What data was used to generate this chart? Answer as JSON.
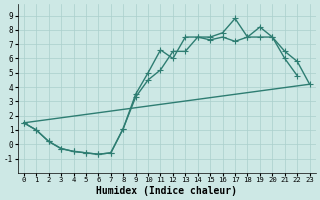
{
  "xlabel": "Humidex (Indice chaleur)",
  "bg_color": "#cde8e5",
  "grid_color": "#aacfcc",
  "line_color": "#2e7d72",
  "xlim": [
    -0.5,
    23.5
  ],
  "ylim": [
    -2.0,
    9.8
  ],
  "xticks": [
    0,
    1,
    2,
    3,
    4,
    5,
    6,
    7,
    8,
    9,
    10,
    11,
    12,
    13,
    14,
    15,
    16,
    17,
    18,
    19,
    20,
    21,
    22,
    23
  ],
  "yticks": [
    -1,
    0,
    1,
    2,
    3,
    4,
    5,
    6,
    7,
    8,
    9
  ],
  "line1_x": [
    0,
    1,
    2,
    3,
    4,
    5,
    6,
    7,
    8,
    9,
    10,
    11,
    12,
    13,
    14,
    15,
    16,
    17,
    18,
    19,
    20,
    21,
    22
  ],
  "line1_y": [
    1.5,
    1.0,
    0.2,
    -0.3,
    -0.5,
    -0.6,
    -0.7,
    -0.6,
    1.1,
    3.5,
    5.0,
    6.6,
    6.0,
    7.5,
    7.5,
    7.5,
    7.8,
    8.8,
    7.5,
    8.2,
    7.5,
    6.0,
    4.8
  ],
  "line2_x": [
    0,
    1,
    2,
    3,
    4,
    5,
    6,
    7,
    8,
    9,
    10,
    11,
    12,
    13,
    14,
    15,
    16,
    17,
    18,
    19,
    20,
    21,
    22,
    23
  ],
  "line2_y": [
    1.5,
    1.0,
    0.2,
    -0.3,
    -0.5,
    -0.6,
    -0.7,
    -0.6,
    1.1,
    3.3,
    4.5,
    5.2,
    6.5,
    6.5,
    7.5,
    7.3,
    7.5,
    7.2,
    7.5,
    7.5,
    7.5,
    6.5,
    5.8,
    4.2
  ],
  "line3_x": [
    0,
    23
  ],
  "line3_y": [
    1.5,
    4.2
  ],
  "marker": "+",
  "markersize": 4,
  "linewidth": 1.0
}
